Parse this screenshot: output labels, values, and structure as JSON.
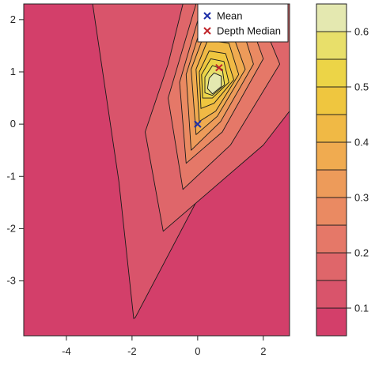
{
  "chart_data": {
    "type": "filled-contour",
    "title": "",
    "xlabel": "",
    "ylabel": "",
    "xlim": [
      -5.3,
      2.8
    ],
    "ylim": [
      -4.05,
      2.3
    ],
    "x_ticks": [
      {
        "value": -4,
        "label": "-4"
      },
      {
        "value": -2,
        "label": "-2"
      },
      {
        "value": 0,
        "label": "0"
      },
      {
        "value": 2,
        "label": "2"
      }
    ],
    "y_ticks": [
      {
        "value": -3,
        "label": "-3"
      },
      {
        "value": -2,
        "label": "-2"
      },
      {
        "value": -1,
        "label": "-1"
      },
      {
        "value": 0,
        "label": "0"
      },
      {
        "value": 1,
        "label": "1"
      },
      {
        "value": 2,
        "label": "2"
      }
    ],
    "contour_levels": [
      0.05,
      0.1,
      0.15,
      0.2,
      0.25,
      0.3,
      0.35,
      0.4,
      0.45,
      0.5,
      0.55,
      0.6,
      0.65
    ],
    "band_colors": [
      "#d33f6a",
      "#d9546b",
      "#df666a",
      "#e57868",
      "#ea8a62",
      "#ed9b5a",
      "#f0ab50",
      "#f0b945",
      "#efc63f",
      "#ecd447",
      "#e8df6a",
      "#e4e8b0"
    ],
    "contours": [
      {
        "level": 0.1,
        "points": [
          [
            -3.2,
            2.3
          ],
          [
            -2.0,
            2.3
          ],
          [
            2.8,
            2.3
          ],
          [
            2.8,
            0.7
          ],
          [
            0.2,
            -1.2
          ],
          [
            -1.9,
            -3.7
          ],
          [
            -1.95,
            -3.72
          ],
          [
            -2.4,
            -1.1
          ],
          [
            -3.2,
            2.3
          ]
        ]
      },
      {
        "level": 0.15,
        "points": [
          [
            -0.45,
            2.3
          ],
          [
            2.8,
            2.3
          ],
          [
            2.8,
            0.25
          ],
          [
            2.0,
            -0.4
          ],
          [
            -1.05,
            -2.05
          ],
          [
            -1.6,
            -0.15
          ],
          [
            -0.9,
            1.15
          ],
          [
            -0.45,
            2.3
          ]
        ]
      },
      {
        "level": 0.2,
        "points": [
          [
            -0.05,
            2.3
          ],
          [
            1.75,
            2.3
          ],
          [
            2.5,
            1.15
          ],
          [
            1.0,
            -0.4
          ],
          [
            -0.45,
            -1.25
          ],
          [
            -0.9,
            0.5
          ],
          [
            -0.05,
            2.3
          ]
        ]
      },
      {
        "level": 0.25,
        "points": [
          [
            0.15,
            2.3
          ],
          [
            1.4,
            2.3
          ],
          [
            2.0,
            1.25
          ],
          [
            0.75,
            -0.15
          ],
          [
            -0.35,
            -0.75
          ],
          [
            -0.55,
            0.8
          ],
          [
            0.15,
            2.3
          ]
        ]
      },
      {
        "level": 0.3,
        "points": [
          [
            0.2,
            2.05
          ],
          [
            1.25,
            2.05
          ],
          [
            1.7,
            1.15
          ],
          [
            0.7,
            0.05
          ],
          [
            -0.2,
            -0.5
          ],
          [
            -0.35,
            0.95
          ],
          [
            0.2,
            2.05
          ]
        ]
      },
      {
        "level": 0.35,
        "points": [
          [
            0.25,
            1.8
          ],
          [
            1.05,
            1.75
          ],
          [
            1.45,
            1.05
          ],
          [
            0.6,
            0.15
          ],
          [
            -0.05,
            -0.2
          ],
          [
            -0.2,
            1.05
          ],
          [
            0.25,
            1.8
          ]
        ]
      },
      {
        "level": 0.4,
        "points": [
          [
            0.3,
            1.6
          ],
          [
            0.95,
            1.55
          ],
          [
            1.25,
            0.95
          ],
          [
            0.55,
            0.25
          ],
          [
            0.05,
            0.05
          ],
          [
            -0.05,
            1.05
          ],
          [
            0.3,
            1.6
          ]
        ]
      },
      {
        "level": 0.45,
        "points": [
          [
            0.35,
            1.4
          ],
          [
            0.85,
            1.35
          ],
          [
            1.1,
            0.85
          ],
          [
            0.5,
            0.4
          ],
          [
            0.1,
            0.3
          ],
          [
            0.05,
            1.0
          ],
          [
            0.35,
            1.4
          ]
        ]
      },
      {
        "level": 0.5,
        "points": [
          [
            0.4,
            1.25
          ],
          [
            0.8,
            1.2
          ],
          [
            0.95,
            0.8
          ],
          [
            0.45,
            0.5
          ],
          [
            0.15,
            0.5
          ],
          [
            0.12,
            0.95
          ],
          [
            0.4,
            1.25
          ]
        ]
      },
      {
        "level": 0.55,
        "points": [
          [
            0.45,
            1.12
          ],
          [
            0.75,
            1.05
          ],
          [
            0.82,
            0.75
          ],
          [
            0.45,
            0.55
          ],
          [
            0.22,
            0.6
          ],
          [
            0.22,
            0.9
          ],
          [
            0.45,
            1.12
          ]
        ]
      },
      {
        "level": 0.6,
        "points": [
          [
            0.5,
            0.98
          ],
          [
            0.72,
            0.92
          ],
          [
            0.72,
            0.72
          ],
          [
            0.45,
            0.58
          ],
          [
            0.3,
            0.68
          ],
          [
            0.35,
            0.88
          ],
          [
            0.5,
            0.98
          ]
        ]
      }
    ],
    "markers": [
      {
        "name": "Mean",
        "x": 0.0,
        "y": 0.0,
        "symbol": "x",
        "color": "#1e2fa8"
      },
      {
        "name": "Depth Median",
        "x": 0.65,
        "y": 1.08,
        "symbol": "x",
        "color": "#c0252b"
      }
    ],
    "legend": {
      "position": "top-right",
      "entries": [
        "Mean",
        "Depth Median"
      ]
    },
    "colorbar": {
      "ticks": [
        {
          "value": 0.1,
          "label": "0.1"
        },
        {
          "value": 0.2,
          "label": "0.2"
        },
        {
          "value": 0.3,
          "label": "0.3"
        },
        {
          "value": 0.4,
          "label": "0.4"
        },
        {
          "value": 0.5,
          "label": "0.5"
        },
        {
          "value": 0.6,
          "label": "0.6"
        }
      ]
    }
  }
}
